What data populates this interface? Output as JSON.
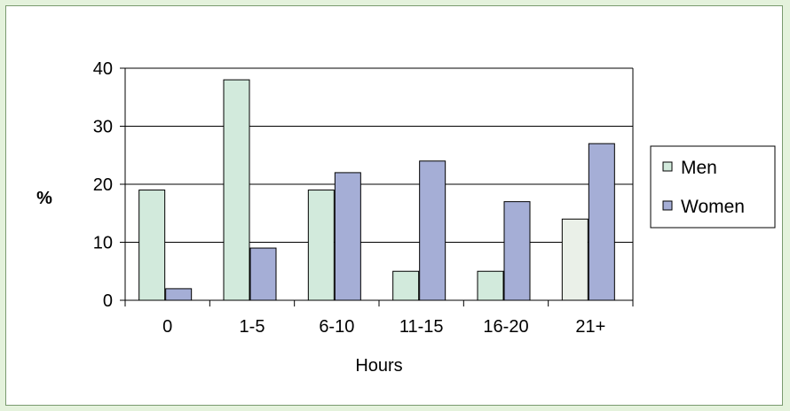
{
  "chart_data": {
    "type": "bar",
    "categories": [
      "0",
      "1-5",
      "6-10",
      "11-15",
      "16-20",
      "21+"
    ],
    "series": [
      {
        "name": "Men",
        "values": [
          19,
          38,
          19,
          5,
          5,
          14
        ],
        "color": "#d2eadc",
        "alt_colors": {
          "5": "#eaf0e8"
        }
      },
      {
        "name": "Women",
        "values": [
          2,
          9,
          22,
          24,
          17,
          27
        ],
        "color": "#a5aed6"
      }
    ],
    "title": "",
    "xlabel": "Hours",
    "ylabel": "%",
    "ylim": [
      0,
      40
    ],
    "yticks": [
      0,
      10,
      20,
      30,
      40
    ],
    "grid": true,
    "legend_position": "right"
  }
}
